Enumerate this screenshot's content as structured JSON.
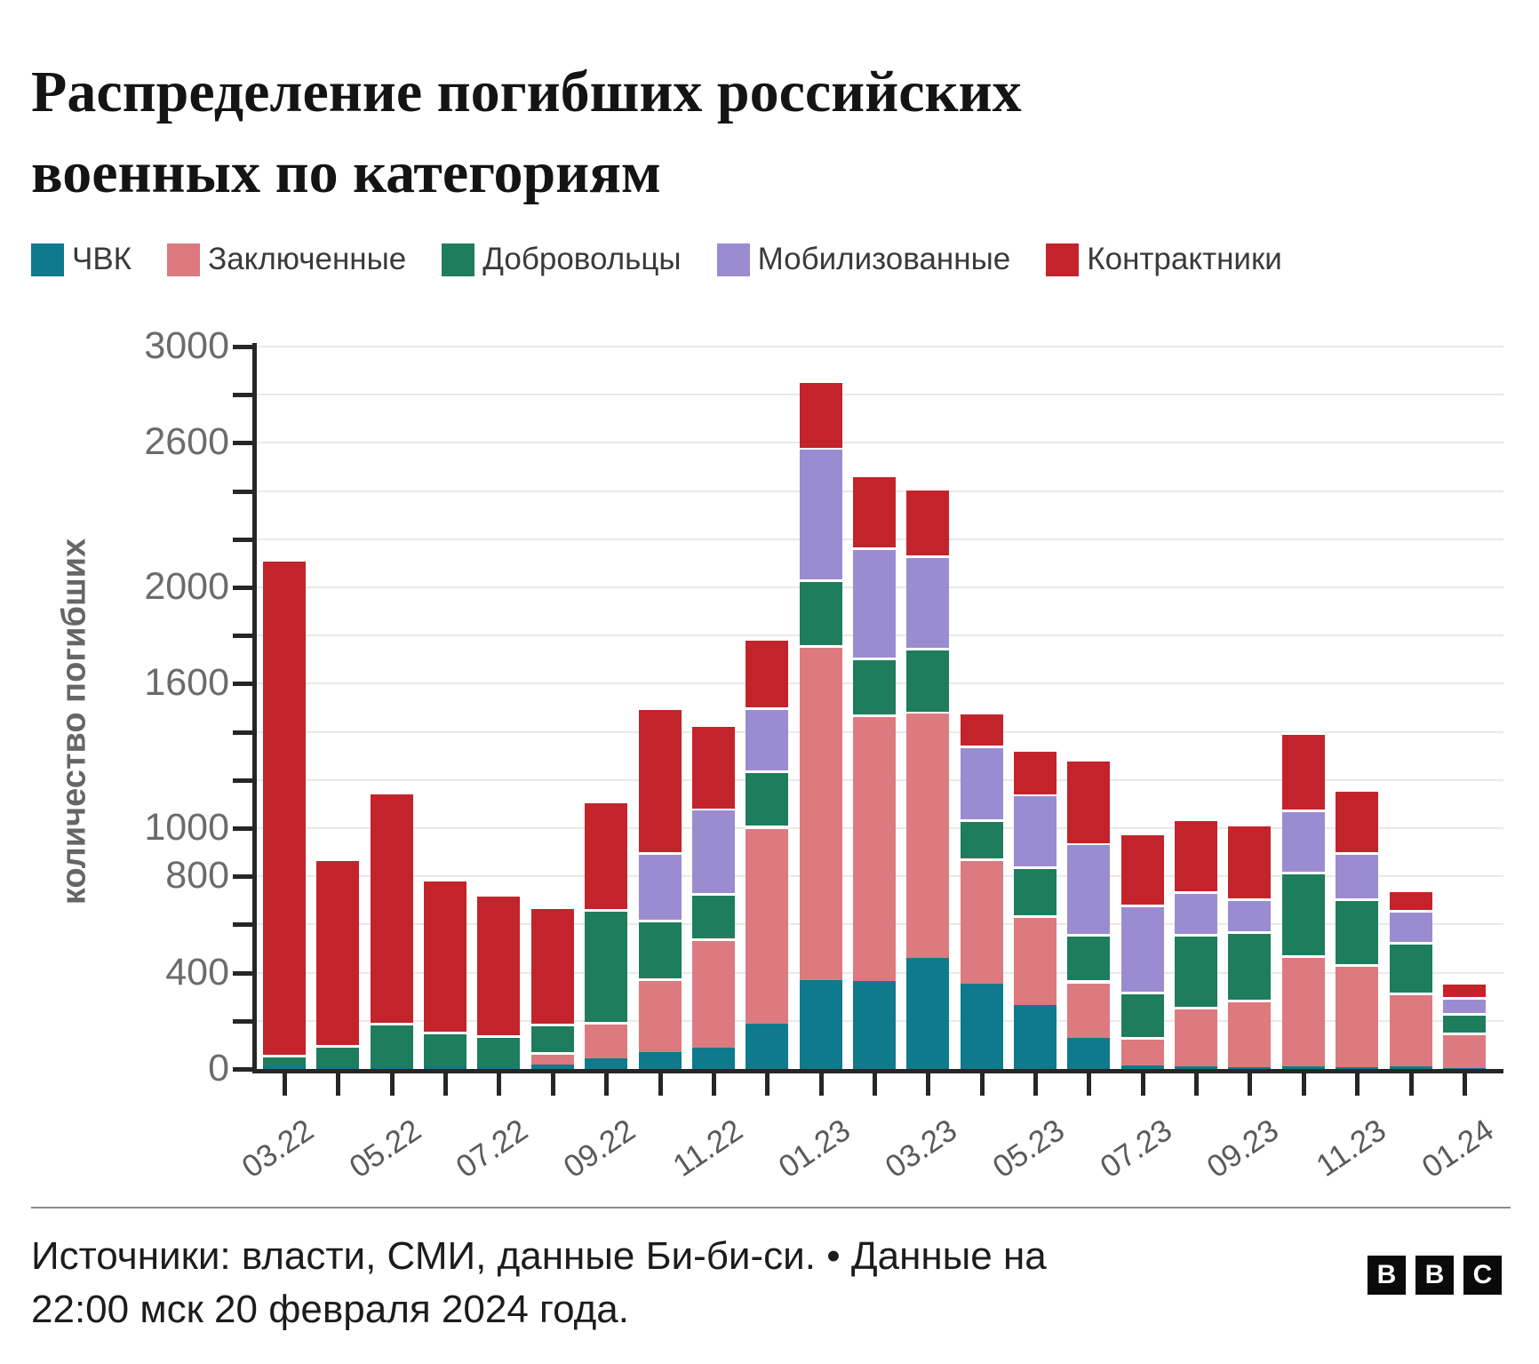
{
  "title": {
    "line1": "Распределение погибших российских",
    "line2": "военных по категориям"
  },
  "chart_data": {
    "type": "bar",
    "stacked": true,
    "title": "Распределение погибших российских военных по категориям",
    "xlabel": "",
    "ylabel": "количество погибших",
    "ylim": [
      0,
      3000
    ],
    "grid": "horizontal",
    "legend_position": "top",
    "y_tick_step": 200,
    "y_tick_labels_shown": [
      0,
      400,
      800,
      1000,
      1600,
      2000,
      2600,
      3000
    ],
    "x_tick_labels_shown": [
      "03.22",
      "05.22",
      "07.22",
      "09.22",
      "11.22",
      "01.23",
      "03.23",
      "05.23",
      "07.23",
      "09.23",
      "11.23",
      "01.24"
    ],
    "categories": [
      "03.22",
      "04.22",
      "05.22",
      "06.22",
      "07.22",
      "08.22",
      "09.22",
      "10.22",
      "11.22",
      "12.22",
      "01.23",
      "02.23",
      "03.23",
      "04.23",
      "05.23",
      "06.23",
      "07.23",
      "08.23",
      "09.23",
      "10.23",
      "11.23",
      "12.23",
      "01.24"
    ],
    "series": [
      {
        "name": "ЧВК",
        "color": "#0f7a8c",
        "values": [
          13,
          7,
          6,
          11,
          8,
          18,
          44,
          70,
          88,
          190,
          370,
          365,
          460,
          355,
          266,
          130,
          16,
          10,
          7,
          10,
          7,
          10,
          4
        ]
      },
      {
        "name": "Заключенные",
        "color": "#dd7a7f",
        "values": [
          0,
          0,
          0,
          0,
          0,
          52,
          151,
          306,
          453,
          820,
          1390,
          1108,
          1025,
          521,
          371,
          238,
          117,
          248,
          279,
          462,
          428,
          307,
          147
        ]
      },
      {
        "name": "Добровольцы",
        "color": "#1d7d5c",
        "values": [
          46,
          92,
          186,
          144,
          132,
          118,
          468,
          243,
          188,
          230,
          272,
          237,
          265,
          162,
          203,
          192,
          187,
          302,
          285,
          346,
          272,
          210,
          80
        ]
      },
      {
        "name": "Мобилизованные",
        "color": "#9b8cd1",
        "values": [
          0,
          0,
          0,
          0,
          0,
          0,
          0,
          281,
          354,
          262,
          549,
          456,
          383,
          306,
          302,
          379,
          361,
          177,
          136,
          258,
          192,
          132,
          67
        ]
      },
      {
        "name": "Контрактники",
        "color": "#c3242b",
        "values": [
          2060,
          776,
          958,
          635,
          585,
          487,
          449,
          600,
          350,
          288,
          280,
          302,
          279,
          140,
          188,
          350,
          299,
          302,
          310,
          320,
          261,
          85,
          62
        ]
      }
    ],
    "totals": [
      2119,
      875,
      1150,
      790,
      725,
      675,
      1112,
      1500,
      1433,
      1790,
      2861,
      2468,
      2412,
      1484,
      1330,
      1289,
      980,
      1039,
      1017,
      1396,
      1160,
      744,
      360
    ]
  },
  "footer": {
    "source_line1": "Источники: власти, СМИ, данные Би-би-си. • Данные на",
    "source_line2": "22:00 мск 20 февраля 2024 года.",
    "logo_letters": [
      "B",
      "B",
      "C"
    ]
  }
}
